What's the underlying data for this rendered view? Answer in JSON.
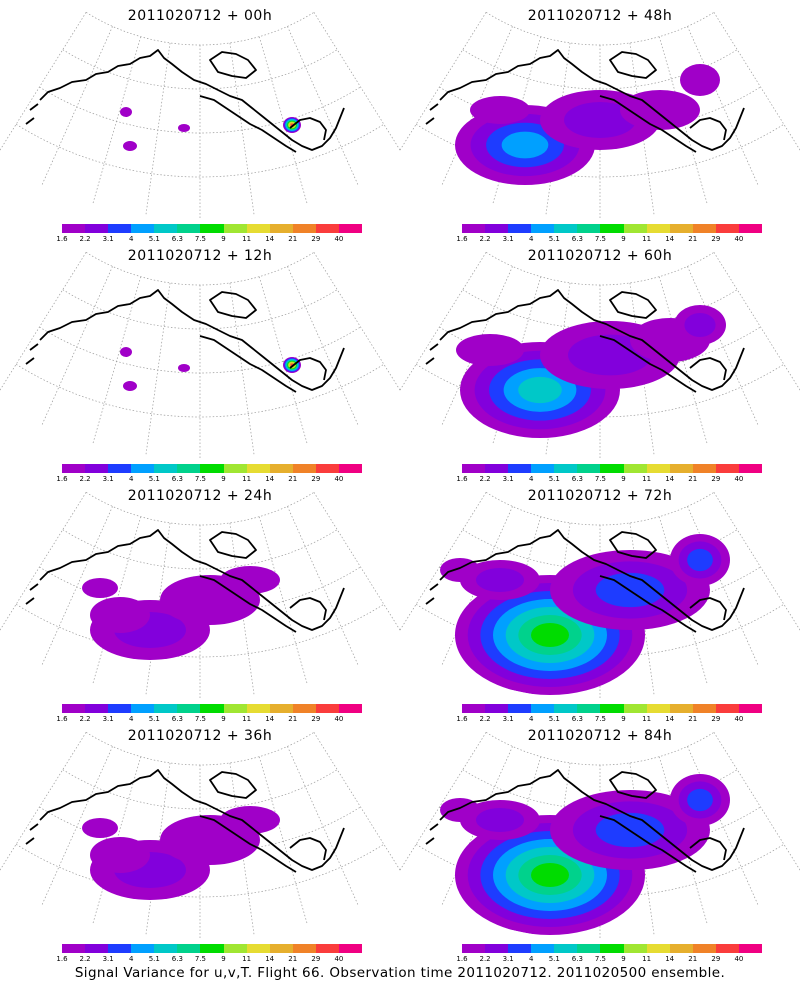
{
  "panels": [
    {
      "title": "2011020712 + 00h",
      "spread": 0
    },
    {
      "title": "2011020712 + 48h",
      "spread": 2
    },
    {
      "title": "2011020712 + 12h",
      "spread": 0
    },
    {
      "title": "2011020712 + 60h",
      "spread": 3
    },
    {
      "title": "2011020712 + 24h",
      "spread": 1
    },
    {
      "title": "2011020712 + 72h",
      "spread": 4
    },
    {
      "title": "2011020712 + 36h",
      "spread": 1
    },
    {
      "title": "2011020712 + 84h",
      "spread": 5
    }
  ],
  "colorbar": {
    "labels": [
      "1.6",
      "2.2",
      "3.1",
      "4",
      "5.1",
      "6.3",
      "7.5",
      "9",
      "11",
      "14",
      "21",
      "29",
      "40"
    ],
    "colors": [
      "#a000c8",
      "#8200dc",
      "#1e3cff",
      "#00a0ff",
      "#00c8c8",
      "#00d28c",
      "#00dc00",
      "#a0e632",
      "#e6dc32",
      "#e6af2d",
      "#f08228",
      "#fa3c3c",
      "#f00082"
    ]
  },
  "footer": "Signal Variance for u,v,T. Flight 66. Observation time 2011020712. 2011020500 ensemble."
}
